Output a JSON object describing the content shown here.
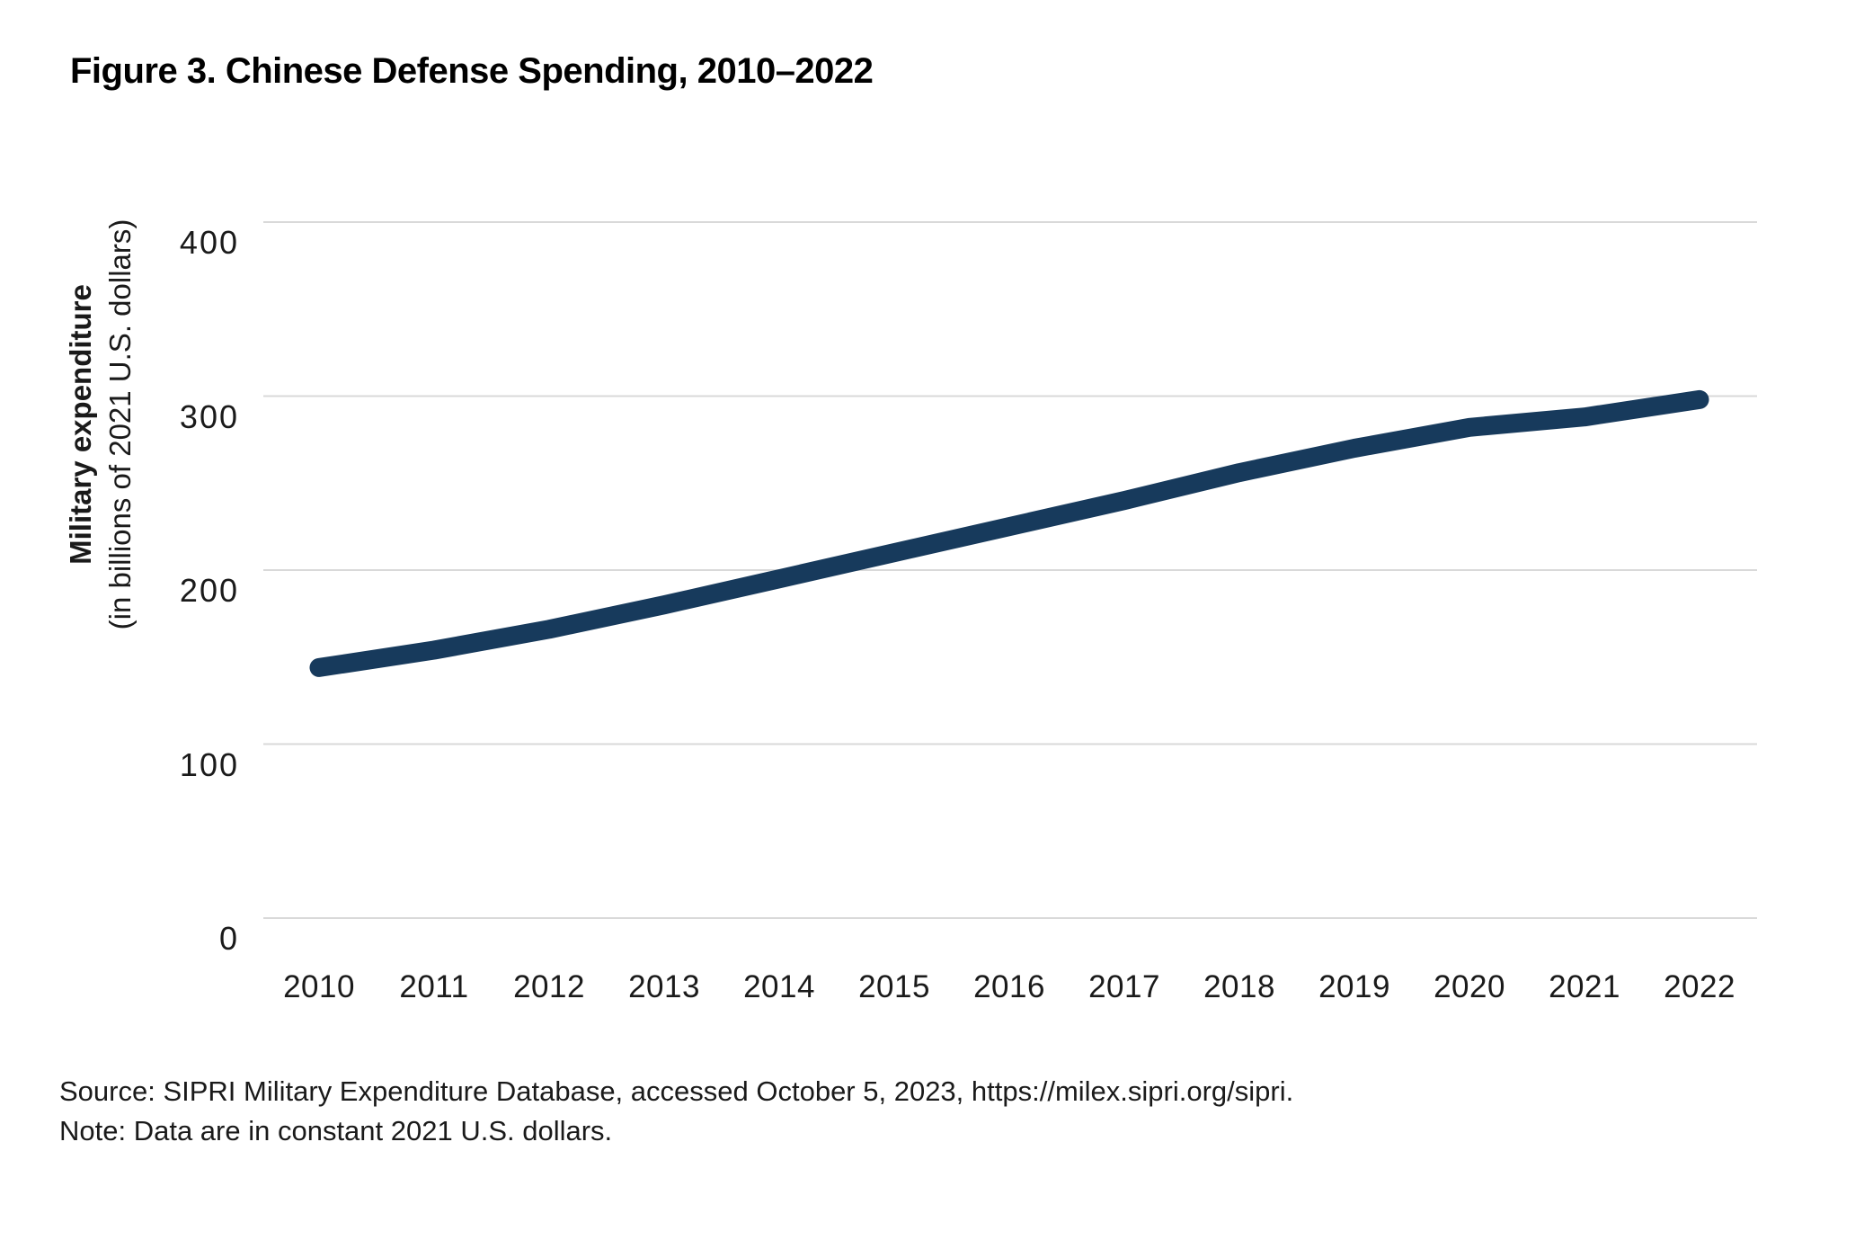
{
  "figure": {
    "title": "Figure 3. Chinese Defense Spending, 2010–2022"
  },
  "chart": {
    "y_axis": {
      "title": "Military expenditure",
      "subtitle": "(in billions of 2021 U.S. dollars)"
    }
  },
  "footer": {
    "source": "Source: SIPRI Military Expenditure Database, accessed October 5, 2023, https://milex.sipri.org/sipri.",
    "note": "Note: Data are in constant 2021 U.S. dollars."
  },
  "chart_data": {
    "type": "line",
    "title": "Figure 3. Chinese Defense Spending, 2010–2022",
    "xlabel": "",
    "ylabel": "Military expenditure (in billions of 2021 U.S. dollars)",
    "x": [
      2010,
      2011,
      2012,
      2013,
      2014,
      2015,
      2016,
      2017,
      2018,
      2019,
      2020,
      2021,
      2022
    ],
    "series": [
      {
        "name": "Chinese military expenditure (billions of 2021 U.S. dollars)",
        "color": "#173a5c",
        "values": [
          144,
          154,
          166,
          180,
          195,
          210,
          225,
          240,
          256,
          270,
          282,
          288,
          298
        ]
      }
    ],
    "ylim": [
      0,
      400
    ],
    "yticks": [
      0,
      100,
      200,
      300,
      400
    ],
    "grid": "horizontal-only",
    "gridline_color": "#d9d9d9",
    "legend": "none",
    "line_width": 21
  }
}
